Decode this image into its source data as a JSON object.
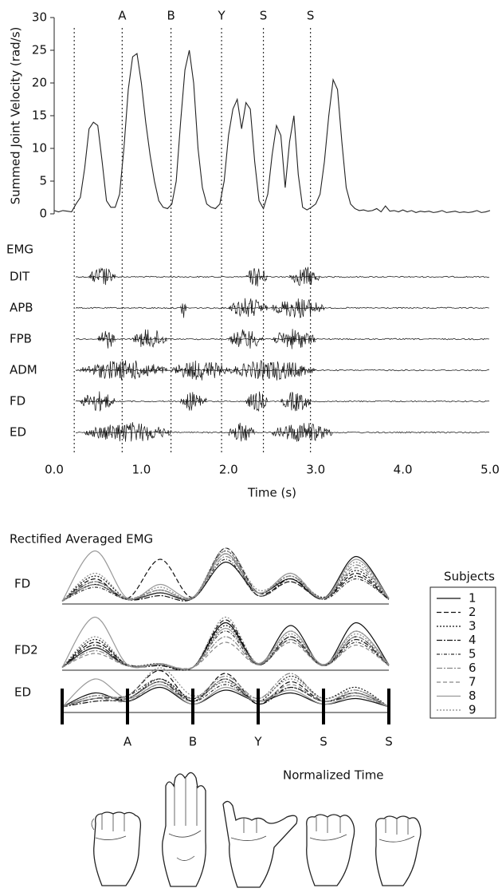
{
  "chart_data": [
    {
      "type": "line",
      "y_label": "Summed Joint Velocity (rad/s)",
      "color": "#222",
      "xlim": [
        0,
        5
      ],
      "ylim": [
        0,
        30
      ],
      "yticks": [
        0,
        5,
        10,
        15,
        20,
        25,
        30
      ],
      "events": [
        {
          "value": 0.23
        },
        {
          "value": 0.78,
          "label": "A"
        },
        {
          "value": 1.34,
          "label": "B"
        },
        {
          "value": 1.92,
          "label": "Y"
        },
        {
          "value": 2.4,
          "label": "S"
        },
        {
          "value": 2.94,
          "label": "S"
        }
      ],
      "x": [
        0,
        0.05,
        0.1,
        0.15,
        0.2,
        0.25,
        0.3,
        0.35,
        0.4,
        0.45,
        0.5,
        0.55,
        0.6,
        0.65,
        0.7,
        0.75,
        0.8,
        0.85,
        0.9,
        0.95,
        1,
        1.05,
        1.1,
        1.15,
        1.2,
        1.25,
        1.3,
        1.35,
        1.4,
        1.45,
        1.5,
        1.55,
        1.6,
        1.65,
        1.7,
        1.75,
        1.8,
        1.85,
        1.9,
        1.95,
        2,
        2.05,
        2.1,
        2.15,
        2.2,
        2.25,
        2.3,
        2.35,
        2.4,
        2.45,
        2.5,
        2.55,
        2.6,
        2.65,
        2.7,
        2.75,
        2.8,
        2.85,
        2.9,
        2.95,
        3,
        3.05,
        3.1,
        3.15,
        3.2,
        3.25,
        3.3,
        3.35,
        3.4,
        3.45,
        3.5,
        3.55,
        3.6,
        3.65,
        3.7,
        3.75,
        3.8,
        3.85,
        3.9,
        3.95,
        4,
        4.05,
        4.1,
        4.15,
        4.2,
        4.25,
        4.3,
        4.35,
        4.4,
        4.45,
        4.5,
        4.55,
        4.6,
        4.65,
        4.7,
        4.75,
        4.8,
        4.85,
        4.9,
        4.95,
        5
      ],
      "values": [
        0.5,
        0.3,
        0.5,
        0.4,
        0.3,
        1.5,
        2.5,
        7,
        13,
        14,
        13.5,
        8,
        2,
        1,
        1,
        3,
        10,
        19,
        24,
        24.5,
        20,
        14,
        9,
        5,
        2,
        1,
        0.8,
        1.5,
        5,
        14,
        22,
        25,
        20,
        10,
        4,
        1.5,
        1,
        0.8,
        1.5,
        5,
        12,
        16,
        17.5,
        13,
        17,
        16,
        8,
        2,
        0.8,
        3,
        9,
        13.5,
        12,
        4,
        11,
        15,
        6,
        1,
        0.6,
        1,
        1.5,
        3,
        8,
        15,
        20.5,
        19,
        11,
        4,
        1.5,
        0.8,
        0.5,
        0.6,
        0.4,
        0.5,
        0.8,
        0.3,
        1.2,
        0.4,
        0.5,
        0.3,
        0.6,
        0.3,
        0.5,
        0.2,
        0.4,
        0.3,
        0.4,
        0.2,
        0.3,
        0.5,
        0.2,
        0.3,
        0.4,
        0.2,
        0.3,
        0.2,
        0.3,
        0.5,
        0.2,
        0.3,
        0.5
      ]
    },
    {
      "type": "emg",
      "title": "EMG",
      "x_label": "Time (s)",
      "xlim": [
        0,
        5
      ],
      "xticks": [
        {
          "value": 0,
          "label": "0.0"
        },
        {
          "value": 1,
          "label": "1.0"
        },
        {
          "value": 2,
          "label": "2.0"
        },
        {
          "value": 3,
          "label": "3.0"
        },
        {
          "value": 4,
          "label": "4.0"
        },
        {
          "value": 5,
          "label": "5.0"
        }
      ],
      "rows": [
        {
          "label": "DIT",
          "bursts": [
            [
              0.4,
              0.7
            ],
            [
              2.2,
              2.45
            ],
            [
              2.7,
              3.05
            ]
          ]
        },
        {
          "label": "APB",
          "bursts": [
            [
              1.45,
              1.52
            ],
            [
              2.0,
              2.45
            ],
            [
              2.5,
              3.1
            ]
          ]
        },
        {
          "label": "FPB",
          "bursts": [
            [
              0.5,
              0.7
            ],
            [
              0.9,
              1.3
            ],
            [
              2.0,
              2.4
            ],
            [
              2.5,
              3.0
            ]
          ]
        },
        {
          "label": "ADM",
          "bursts": [
            [
              0.3,
              1.3
            ],
            [
              1.35,
              2.0
            ],
            [
              2.0,
              3.0
            ]
          ]
        },
        {
          "label": "FD",
          "bursts": [
            [
              0.3,
              0.7
            ],
            [
              1.45,
              1.75
            ],
            [
              2.2,
              2.45
            ],
            [
              2.6,
              2.95
            ]
          ]
        },
        {
          "label": "ED",
          "bursts": [
            [
              0.35,
              1.35
            ],
            [
              2.0,
              2.3
            ],
            [
              2.5,
              3.2
            ]
          ]
        }
      ]
    },
    {
      "type": "line",
      "title": "Rectified Averaged EMG",
      "x_label": "Normalized Time",
      "legend_title": "Subjects",
      "xlim": [
        0,
        5
      ],
      "ylim": [
        0,
        100
      ],
      "events": [
        {
          "value": 1,
          "label": "A"
        },
        {
          "value": 2,
          "label": "B"
        },
        {
          "value": 3,
          "label": "Y"
        },
        {
          "value": 4,
          "label": "S"
        },
        {
          "value": 5,
          "label": "S"
        }
      ],
      "x": [
        0,
        0.5,
        1,
        1.5,
        2,
        2.5,
        3,
        3.5,
        4,
        4.5,
        5
      ],
      "series": [
        {
          "name": "1",
          "color": "#111",
          "dash": "none"
        },
        {
          "name": "2",
          "color": "#111",
          "dash": "6,3"
        },
        {
          "name": "3",
          "color": "#111",
          "dash": "2,2"
        },
        {
          "name": "4",
          "color": "#111",
          "dash": "7,2,2,2"
        },
        {
          "name": "5",
          "color": "#333",
          "dash": "4,2,1,2"
        },
        {
          "name": "6",
          "color": "#888",
          "dash": "7,2,2,2"
        },
        {
          "name": "7",
          "color": "#888",
          "dash": "5,3"
        },
        {
          "name": "8",
          "color": "#999",
          "dash": "none"
        },
        {
          "name": "9",
          "color": "#888",
          "dash": "2,2"
        }
      ],
      "panels": [
        {
          "label": "FD",
          "values": [
            [
              5,
              35,
              8,
              20,
              10,
              75,
              20,
              45,
              10,
              85,
              10
            ],
            [
              5,
              45,
              10,
              80,
              12,
              100,
              20,
              40,
              10,
              55,
              8
            ],
            [
              5,
              50,
              10,
              25,
              12,
              95,
              20,
              50,
              12,
              60,
              10
            ],
            [
              5,
              40,
              8,
              15,
              10,
              90,
              15,
              45,
              10,
              50,
              8
            ],
            [
              5,
              30,
              8,
              20,
              10,
              80,
              15,
              40,
              8,
              45,
              8
            ],
            [
              5,
              35,
              8,
              25,
              10,
              85,
              20,
              50,
              10,
              70,
              10
            ],
            [
              5,
              40,
              10,
              25,
              12,
              95,
              20,
              55,
              10,
              65,
              10
            ],
            [
              5,
              95,
              10,
              35,
              12,
              90,
              20,
              55,
              10,
              80,
              10
            ],
            [
              5,
              55,
              10,
              30,
              12,
              100,
              25,
              50,
              10,
              75,
              10
            ]
          ]
        },
        {
          "label": "FD2",
          "values": [
            [
              5,
              40,
              8,
              10,
              5,
              85,
              10,
              80,
              8,
              85,
              10
            ],
            [
              5,
              50,
              10,
              10,
              5,
              90,
              10,
              60,
              8,
              60,
              8
            ],
            [
              5,
              55,
              10,
              12,
              5,
              80,
              12,
              70,
              10,
              70,
              10
            ],
            [
              5,
              45,
              8,
              8,
              5,
              85,
              10,
              55,
              8,
              55,
              8
            ],
            [
              5,
              40,
              8,
              10,
              5,
              70,
              10,
              60,
              8,
              50,
              8
            ],
            [
              5,
              35,
              8,
              10,
              5,
              60,
              10,
              55,
              8,
              60,
              8
            ],
            [
              5,
              30,
              8,
              10,
              5,
              50,
              10,
              50,
              8,
              45,
              8
            ],
            [
              5,
              95,
              10,
              12,
              5,
              75,
              12,
              70,
              10,
              70,
              10
            ],
            [
              5,
              60,
              10,
              10,
              5,
              95,
              12,
              65,
              10,
              65,
              10
            ]
          ]
        },
        {
          "label": "ED",
          "values": [
            [
              10,
              35,
              20,
              45,
              15,
              40,
              20,
              35,
              15,
              25,
              10
            ],
            [
              10,
              25,
              30,
              75,
              20,
              70,
              15,
              55,
              20,
              35,
              10
            ],
            [
              10,
              30,
              25,
              60,
              25,
              55,
              20,
              65,
              25,
              45,
              10
            ],
            [
              10,
              20,
              25,
              55,
              20,
              60,
              15,
              45,
              20,
              30,
              10
            ],
            [
              10,
              25,
              30,
              60,
              20,
              50,
              20,
              45,
              20,
              35,
              10
            ],
            [
              10,
              30,
              25,
              55,
              25,
              65,
              25,
              70,
              20,
              40,
              10
            ],
            [
              10,
              25,
              20,
              50,
              20,
              60,
              20,
              50,
              20,
              35,
              10
            ],
            [
              10,
              60,
              25,
              50,
              15,
              45,
              20,
              40,
              15,
              30,
              10
            ],
            [
              10,
              30,
              30,
              80,
              30,
              55,
              25,
              60,
              25,
              40,
              10
            ]
          ]
        }
      ]
    }
  ]
}
